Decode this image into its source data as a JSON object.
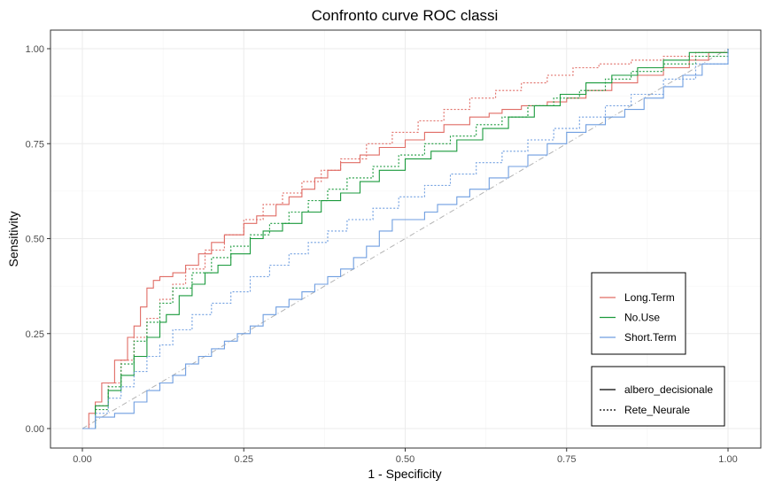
{
  "chart_data": {
    "type": "line",
    "title": "Confronto curve ROC classi",
    "xlabel": "1 - Specificity",
    "ylabel": "Sensitivity",
    "xlim": [
      0,
      1
    ],
    "ylim": [
      0,
      1
    ],
    "xticks": [
      "0.00",
      "0.25",
      "0.50",
      "0.75",
      "1.00"
    ],
    "yticks": [
      "0.00",
      "0.25",
      "0.50",
      "0.75",
      "1.00"
    ],
    "grid": true,
    "reference_line": {
      "x": [
        0,
        1
      ],
      "y": [
        0,
        1
      ],
      "color": "#b3b3b3",
      "style": "dotdash"
    },
    "color_legend": {
      "placement": "bottom-right",
      "entries": [
        {
          "label": "Long.Term",
          "color": "#e06c65"
        },
        {
          "label": "No.Use",
          "color": "#1a9a3c"
        },
        {
          "label": "Short.Term",
          "color": "#6f9ee0"
        }
      ]
    },
    "linetype_legend": {
      "placement": "bottom-right",
      "entries": [
        {
          "label": "albero_decisionale",
          "style": "solid"
        },
        {
          "label": "Rete_Neurale",
          "style": "dotted"
        }
      ]
    },
    "series": [
      {
        "class": "Long.Term",
        "model": "albero_decisionale",
        "color": "#e06c65",
        "style": "solid",
        "x": [
          0,
          0.01,
          0.02,
          0.03,
          0.05,
          0.07,
          0.08,
          0.09,
          0.1,
          0.11,
          0.12,
          0.14,
          0.16,
          0.18,
          0.2,
          0.22,
          0.25,
          0.27,
          0.3,
          0.32,
          0.34,
          0.36,
          0.38,
          0.4,
          0.43,
          0.46,
          0.5,
          0.53,
          0.56,
          0.6,
          0.63,
          0.65,
          0.68,
          0.72,
          0.75,
          0.78,
          0.82,
          0.86,
          0.9,
          0.94,
          0.97,
          1.0
        ],
        "y": [
          0,
          0.04,
          0.07,
          0.12,
          0.18,
          0.24,
          0.27,
          0.32,
          0.37,
          0.39,
          0.4,
          0.41,
          0.43,
          0.46,
          0.49,
          0.51,
          0.54,
          0.56,
          0.59,
          0.61,
          0.63,
          0.66,
          0.68,
          0.7,
          0.72,
          0.74,
          0.76,
          0.78,
          0.8,
          0.82,
          0.83,
          0.84,
          0.85,
          0.86,
          0.87,
          0.89,
          0.91,
          0.93,
          0.95,
          0.97,
          0.99,
          1.0
        ]
      },
      {
        "class": "Long.Term",
        "model": "Rete_Neurale",
        "color": "#e06c65",
        "style": "dotted",
        "x": [
          0,
          0.02,
          0.04,
          0.06,
          0.08,
          0.1,
          0.12,
          0.14,
          0.16,
          0.19,
          0.22,
          0.25,
          0.28,
          0.31,
          0.34,
          0.37,
          0.4,
          0.44,
          0.48,
          0.52,
          0.56,
          0.6,
          0.64,
          0.68,
          0.72,
          0.76,
          0.8,
          0.85,
          0.9,
          0.95,
          1.0
        ],
        "y": [
          0,
          0.06,
          0.12,
          0.18,
          0.24,
          0.29,
          0.34,
          0.38,
          0.42,
          0.47,
          0.51,
          0.55,
          0.59,
          0.62,
          0.65,
          0.68,
          0.71,
          0.75,
          0.78,
          0.81,
          0.84,
          0.87,
          0.89,
          0.91,
          0.93,
          0.95,
          0.96,
          0.97,
          0.98,
          0.99,
          1.0
        ]
      },
      {
        "class": "No.Use",
        "model": "albero_decisionale",
        "color": "#1a9a3c",
        "style": "solid",
        "x": [
          0,
          0.02,
          0.04,
          0.06,
          0.08,
          0.1,
          0.12,
          0.13,
          0.15,
          0.17,
          0.19,
          0.21,
          0.23,
          0.26,
          0.28,
          0.31,
          0.34,
          0.37,
          0.4,
          0.43,
          0.46,
          0.5,
          0.54,
          0.58,
          0.62,
          0.66,
          0.7,
          0.74,
          0.78,
          0.82,
          0.86,
          0.9,
          0.94,
          1.0
        ],
        "y": [
          0,
          0.06,
          0.1,
          0.14,
          0.19,
          0.24,
          0.28,
          0.3,
          0.35,
          0.38,
          0.41,
          0.43,
          0.46,
          0.5,
          0.52,
          0.54,
          0.57,
          0.6,
          0.62,
          0.65,
          0.68,
          0.71,
          0.73,
          0.76,
          0.79,
          0.82,
          0.85,
          0.88,
          0.91,
          0.93,
          0.95,
          0.97,
          0.99,
          1.0
        ]
      },
      {
        "class": "No.Use",
        "model": "Rete_Neurale",
        "color": "#1a9a3c",
        "style": "dotted",
        "x": [
          0,
          0.02,
          0.04,
          0.06,
          0.08,
          0.1,
          0.12,
          0.14,
          0.17,
          0.2,
          0.23,
          0.26,
          0.29,
          0.32,
          0.35,
          0.38,
          0.41,
          0.45,
          0.49,
          0.53,
          0.57,
          0.61,
          0.65,
          0.69,
          0.73,
          0.77,
          0.81,
          0.85,
          0.9,
          0.95,
          1.0
        ],
        "y": [
          0,
          0.05,
          0.11,
          0.17,
          0.23,
          0.28,
          0.33,
          0.37,
          0.41,
          0.45,
          0.48,
          0.51,
          0.54,
          0.57,
          0.6,
          0.63,
          0.66,
          0.69,
          0.72,
          0.75,
          0.77,
          0.8,
          0.82,
          0.85,
          0.87,
          0.89,
          0.92,
          0.94,
          0.96,
          0.98,
          1.0
        ]
      },
      {
        "class": "Short.Term",
        "model": "albero_decisionale",
        "color": "#6f9ee0",
        "style": "solid",
        "x": [
          0,
          0.02,
          0.05,
          0.08,
          0.1,
          0.12,
          0.14,
          0.16,
          0.18,
          0.2,
          0.22,
          0.24,
          0.26,
          0.28,
          0.3,
          0.32,
          0.34,
          0.36,
          0.38,
          0.4,
          0.42,
          0.44,
          0.46,
          0.48,
          0.5,
          0.53,
          0.55,
          0.58,
          0.6,
          0.63,
          0.66,
          0.69,
          0.72,
          0.75,
          0.78,
          0.81,
          0.84,
          0.87,
          0.9,
          0.93,
          0.96,
          1.0
        ],
        "y": [
          0,
          0.03,
          0.04,
          0.07,
          0.1,
          0.12,
          0.14,
          0.17,
          0.19,
          0.21,
          0.23,
          0.25,
          0.27,
          0.3,
          0.32,
          0.34,
          0.36,
          0.38,
          0.4,
          0.42,
          0.45,
          0.48,
          0.52,
          0.55,
          0.55,
          0.57,
          0.59,
          0.61,
          0.63,
          0.66,
          0.69,
          0.72,
          0.75,
          0.78,
          0.8,
          0.82,
          0.84,
          0.87,
          0.9,
          0.93,
          0.96,
          1.0
        ]
      },
      {
        "class": "Short.Term",
        "model": "Rete_Neurale",
        "color": "#6f9ee0",
        "style": "dotted",
        "x": [
          0,
          0.02,
          0.04,
          0.06,
          0.08,
          0.1,
          0.12,
          0.14,
          0.17,
          0.2,
          0.23,
          0.26,
          0.29,
          0.32,
          0.35,
          0.38,
          0.41,
          0.45,
          0.49,
          0.53,
          0.57,
          0.61,
          0.65,
          0.69,
          0.73,
          0.77,
          0.81,
          0.85,
          0.9,
          0.95,
          1.0
        ],
        "y": [
          0,
          0.04,
          0.08,
          0.11,
          0.15,
          0.19,
          0.22,
          0.26,
          0.3,
          0.33,
          0.36,
          0.4,
          0.43,
          0.46,
          0.49,
          0.52,
          0.55,
          0.58,
          0.61,
          0.64,
          0.67,
          0.7,
          0.73,
          0.76,
          0.79,
          0.82,
          0.85,
          0.88,
          0.92,
          0.96,
          1.0
        ]
      }
    ]
  }
}
